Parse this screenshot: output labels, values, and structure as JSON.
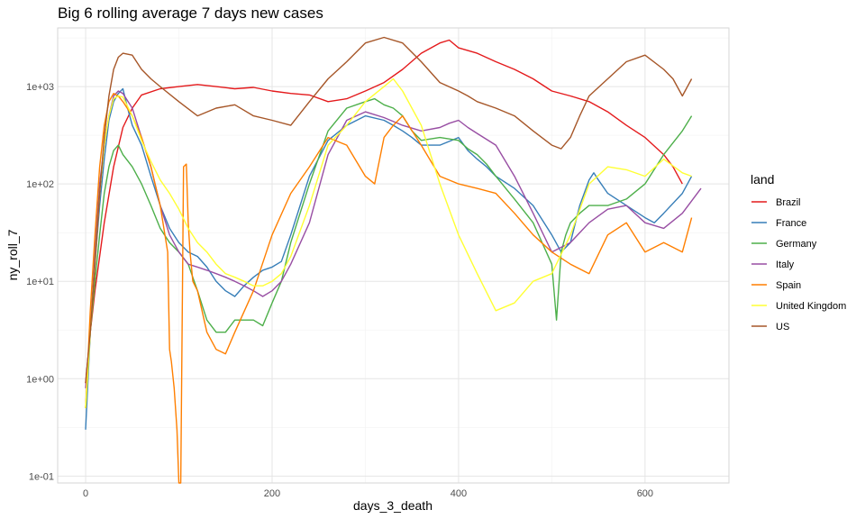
{
  "chart_data": {
    "type": "line",
    "title": "Big 6 rolling average 7 days new cases",
    "xlabel": "days_3_death",
    "ylabel": "ny_roll_7",
    "y_scale": "log10",
    "xlim": [
      -30,
      690
    ],
    "ylim": [
      0.085,
      4000
    ],
    "x_ticks": [
      0,
      200,
      400,
      600
    ],
    "x_tick_labels": [
      "0",
      "200",
      "400",
      "600"
    ],
    "y_ticks": [
      0.1,
      1,
      10,
      100,
      1000
    ],
    "y_tick_labels": [
      "1e-01",
      "1e+00",
      "1e+01",
      "1e+02",
      "1e+03"
    ],
    "grid": true,
    "legend": {
      "title": "land",
      "position": "right"
    },
    "series": [
      {
        "name": "Brazil",
        "color": "#E41A1C",
        "x": [
          0,
          5,
          10,
          20,
          30,
          40,
          50,
          60,
          80,
          100,
          120,
          140,
          160,
          180,
          200,
          220,
          240,
          260,
          280,
          300,
          320,
          340,
          360,
          380,
          390,
          400,
          420,
          440,
          460,
          480,
          500,
          520,
          540,
          560,
          580,
          600,
          620,
          630,
          640
        ],
        "y": [
          0.9,
          3,
          8,
          40,
          150,
          380,
          600,
          820,
          950,
          1000,
          1050,
          1000,
          950,
          980,
          900,
          850,
          820,
          700,
          750,
          900,
          1100,
          1500,
          2200,
          2800,
          3000,
          2500,
          2200,
          1800,
          1500,
          1200,
          900,
          800,
          700,
          550,
          400,
          300,
          200,
          150,
          100
        ]
      },
      {
        "name": "France",
        "color": "#377EB8",
        "x": [
          0,
          5,
          10,
          15,
          20,
          25,
          30,
          35,
          40,
          45,
          50,
          60,
          70,
          80,
          90,
          100,
          110,
          120,
          130,
          140,
          150,
          160,
          170,
          180,
          190,
          200,
          210,
          220,
          240,
          260,
          280,
          300,
          320,
          330,
          340,
          350,
          360,
          380,
          400,
          410,
          420,
          430,
          440,
          460,
          480,
          500,
          510,
          520,
          530,
          540,
          545,
          550,
          560,
          580,
          600,
          610,
          620,
          640,
          650
        ],
        "y": [
          0.3,
          3,
          15,
          60,
          180,
          450,
          700,
          850,
          950,
          600,
          400,
          250,
          120,
          60,
          35,
          25,
          20,
          18,
          14,
          10,
          8,
          7,
          9,
          11,
          13,
          14,
          16,
          30,
          120,
          280,
          400,
          500,
          450,
          400,
          350,
          300,
          250,
          250,
          300,
          220,
          180,
          150,
          120,
          90,
          60,
          30,
          20,
          25,
          60,
          110,
          130,
          110,
          80,
          60,
          45,
          40,
          50,
          80,
          120
        ]
      },
      {
        "name": "Germany",
        "color": "#4DAF4A",
        "x": [
          0,
          5,
          10,
          15,
          20,
          25,
          30,
          35,
          40,
          50,
          60,
          70,
          80,
          90,
          100,
          110,
          120,
          130,
          140,
          150,
          160,
          170,
          180,
          190,
          200,
          210,
          220,
          240,
          260,
          280,
          300,
          310,
          320,
          330,
          340,
          350,
          360,
          380,
          400,
          410,
          420,
          430,
          440,
          460,
          480,
          500,
          505,
          510,
          515,
          520,
          530,
          540,
          560,
          580,
          600,
          620,
          640,
          650
        ],
        "y": [
          0.5,
          3,
          10,
          30,
          80,
          150,
          220,
          250,
          200,
          150,
          100,
          60,
          35,
          25,
          20,
          15,
          8,
          4,
          3,
          3,
          4,
          4,
          4,
          3.5,
          6,
          10,
          25,
          100,
          350,
          600,
          700,
          750,
          650,
          600,
          500,
          350,
          280,
          300,
          280,
          230,
          200,
          160,
          120,
          70,
          40,
          15,
          4,
          20,
          30,
          40,
          50,
          60,
          60,
          70,
          100,
          200,
          350,
          500
        ]
      },
      {
        "name": "Italy",
        "color": "#984EA3",
        "x": [
          0,
          5,
          10,
          15,
          20,
          25,
          30,
          35,
          40,
          50,
          60,
          70,
          80,
          90,
          100,
          110,
          120,
          130,
          140,
          150,
          160,
          170,
          180,
          190,
          200,
          210,
          220,
          240,
          260,
          280,
          300,
          320,
          340,
          360,
          380,
          390,
          400,
          410,
          420,
          440,
          460,
          480,
          500,
          520,
          540,
          560,
          580,
          600,
          620,
          640,
          660
        ],
        "y": [
          0.8,
          3,
          20,
          100,
          250,
          500,
          800,
          900,
          850,
          600,
          300,
          150,
          60,
          30,
          20,
          15,
          14,
          13,
          12,
          11,
          10,
          9,
          8,
          7,
          8,
          10,
          15,
          40,
          200,
          450,
          550,
          480,
          400,
          350,
          380,
          420,
          450,
          380,
          330,
          250,
          120,
          50,
          20,
          25,
          40,
          55,
          60,
          40,
          35,
          50,
          90
        ]
      },
      {
        "name": "Spain",
        "color": "#FF7F00",
        "x": [
          0,
          5,
          10,
          15,
          20,
          25,
          30,
          35,
          40,
          50,
          60,
          70,
          80,
          88,
          90,
          92,
          95,
          98,
          100,
          102,
          105,
          108,
          110,
          112,
          115,
          120,
          130,
          140,
          150,
          160,
          180,
          200,
          220,
          240,
          260,
          280,
          300,
          310,
          320,
          330,
          340,
          360,
          380,
          400,
          420,
          440,
          460,
          480,
          500,
          520,
          540,
          560,
          580,
          600,
          620,
          640,
          650
        ],
        "y": [
          0.5,
          5,
          30,
          150,
          400,
          700,
          850,
          800,
          700,
          500,
          300,
          150,
          60,
          20,
          2,
          1.5,
          0.8,
          0.3,
          0.085,
          0.085,
          150,
          160,
          40,
          20,
          10,
          8,
          3,
          2,
          1.8,
          3,
          8,
          30,
          80,
          150,
          300,
          250,
          120,
          100,
          300,
          400,
          500,
          250,
          120,
          100,
          90,
          80,
          50,
          30,
          20,
          15,
          12,
          30,
          40,
          20,
          25,
          20,
          45
        ]
      },
      {
        "name": "United Kingdom",
        "color": "#FFFF33",
        "x": [
          0,
          5,
          10,
          15,
          20,
          25,
          30,
          35,
          40,
          50,
          60,
          70,
          80,
          90,
          100,
          110,
          120,
          130,
          140,
          150,
          160,
          170,
          180,
          190,
          200,
          210,
          220,
          240,
          260,
          280,
          300,
          320,
          330,
          340,
          360,
          380,
          400,
          420,
          440,
          460,
          480,
          500,
          520,
          540,
          560,
          580,
          600,
          620,
          640,
          650
        ],
        "y": [
          0.5,
          3,
          15,
          80,
          250,
          500,
          750,
          800,
          780,
          500,
          280,
          170,
          110,
          80,
          55,
          35,
          25,
          20,
          15,
          12,
          11,
          10,
          9,
          9,
          10,
          12,
          18,
          60,
          250,
          400,
          700,
          1000,
          1200,
          900,
          400,
          100,
          30,
          12,
          5,
          6,
          10,
          12,
          30,
          100,
          150,
          140,
          120,
          180,
          130,
          120
        ]
      },
      {
        "name": "US",
        "color": "#A65628",
        "x": [
          0,
          5,
          10,
          15,
          20,
          25,
          30,
          35,
          40,
          50,
          60,
          70,
          80,
          100,
          120,
          140,
          160,
          180,
          200,
          220,
          240,
          260,
          280,
          300,
          320,
          340,
          360,
          380,
          400,
          410,
          420,
          440,
          460,
          480,
          500,
          510,
          520,
          530,
          540,
          560,
          580,
          600,
          620,
          630,
          640,
          650
        ],
        "y": [
          0.9,
          3,
          15,
          80,
          300,
          800,
          1500,
          2000,
          2200,
          2100,
          1500,
          1200,
          1000,
          700,
          500,
          600,
          650,
          500,
          450,
          400,
          700,
          1200,
          1800,
          2800,
          3200,
          2800,
          1800,
          1100,
          900,
          800,
          700,
          600,
          500,
          350,
          250,
          230,
          300,
          500,
          800,
          1200,
          1800,
          2100,
          1500,
          1200,
          800,
          1200
        ]
      }
    ]
  }
}
